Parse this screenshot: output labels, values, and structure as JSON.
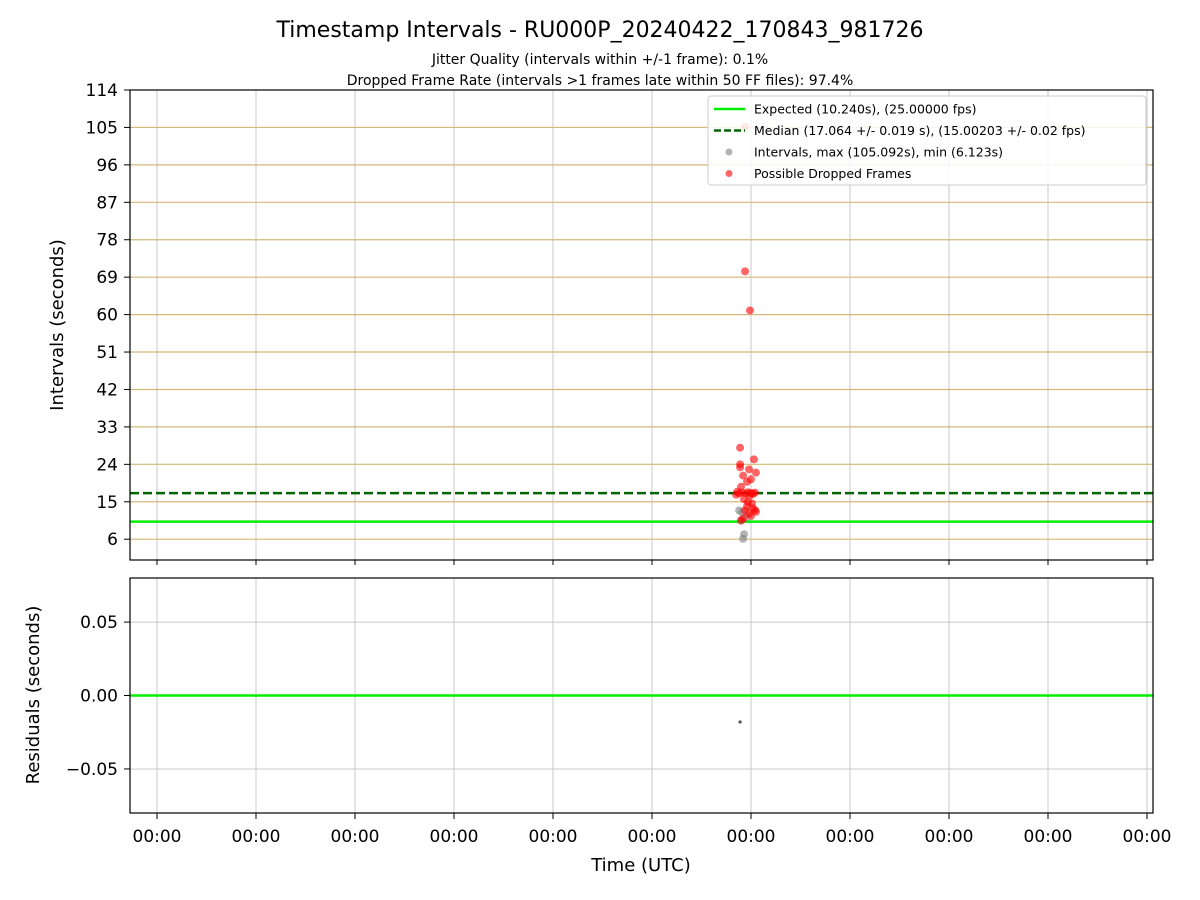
{
  "title": "Timestamp Intervals - RU000P_20240422_170843_981726",
  "subtitle_1": "Jitter Quality (intervals within +/-1 frame): 0.1%",
  "subtitle_2": "Dropped Frame Rate (intervals >1 frames late within 50 FF files): 97.4%",
  "colors": {
    "expected": "#00ee00",
    "median": "#006400",
    "normal_points": "#808080",
    "dropped_points": "#ff0000",
    "hgrid": "#d4b877",
    "vgrid": "#c8c8c8"
  },
  "chart_data": [
    {
      "type": "scatter",
      "ylabel": "Intervals (seconds)",
      "ylim": [
        1,
        114
      ],
      "yticks": [
        "6",
        "15",
        "24",
        "33",
        "42",
        "51",
        "60",
        "69",
        "78",
        "87",
        "96",
        "105",
        "114"
      ],
      "xtick_labels": [
        "00:00",
        "00:00",
        "00:00",
        "00:00",
        "00:00",
        "00:00",
        "00:00",
        "00:00",
        "00:00",
        "00:00",
        "00:00"
      ],
      "grid": true,
      "legend_position": "top-right",
      "reference_lines": [
        {
          "name": "Expected (10.240s), (25.00000 fps)",
          "value": 10.24,
          "style": "solid"
        },
        {
          "name": "Median (17.064 +/- 0.019 s), (15.00203 +/- 0.02 fps)",
          "value": 17.064,
          "style": "dashed"
        }
      ],
      "series": [
        {
          "name": "Intervals, max (105.092s), min (6.123s)",
          "points": [
            [
              5.88,
              12.9
            ],
            [
              5.91,
              12.5
            ],
            [
              5.92,
              6.1
            ],
            [
              5.93,
              7.2
            ],
            [
              5.95,
              11.2
            ],
            [
              5.9,
              10.5
            ]
          ]
        },
        {
          "name": "Possible Dropped Frames",
          "points": [
            [
              5.94,
              105.1
            ],
            [
              5.94,
              70.4
            ],
            [
              5.99,
              61.0
            ],
            [
              5.89,
              28.0
            ],
            [
              6.03,
              25.2
            ],
            [
              5.89,
              24.0
            ],
            [
              5.89,
              23.3
            ],
            [
              5.98,
              22.8
            ],
            [
              6.05,
              22.0
            ],
            [
              5.92,
              21.3
            ],
            [
              6.0,
              20.4
            ],
            [
              5.96,
              19.8
            ],
            [
              5.9,
              18.6
            ],
            [
              5.86,
              17.4
            ],
            [
              5.88,
              17.0
            ],
            [
              5.91,
              17.2
            ],
            [
              5.95,
              17.0
            ],
            [
              5.97,
              17.3
            ],
            [
              6.0,
              17.1
            ],
            [
              6.02,
              16.9
            ],
            [
              6.04,
              17.2
            ],
            [
              5.85,
              16.7
            ],
            [
              5.99,
              16.5
            ],
            [
              5.93,
              15.6
            ],
            [
              5.97,
              14.9
            ],
            [
              6.01,
              14.6
            ],
            [
              5.96,
              13.9
            ],
            [
              6.02,
              13.4
            ],
            [
              6.04,
              13.0
            ],
            [
              6.05,
              12.6
            ],
            [
              5.94,
              12.9
            ],
            [
              5.98,
              12.2
            ],
            [
              6.0,
              11.6
            ],
            [
              5.92,
              11.0
            ],
            [
              5.9,
              10.5
            ]
          ]
        }
      ]
    },
    {
      "type": "scatter",
      "xlabel": "Time (UTC)",
      "ylabel": "Residuals (seconds)",
      "ylim": [
        -0.08,
        0.08
      ],
      "yticks": [
        "−0.05",
        "0.00",
        "0.05"
      ],
      "ytick_values": [
        -0.05,
        0.0,
        0.05
      ],
      "xtick_labels": [
        "00:00",
        "00:00",
        "00:00",
        "00:00",
        "00:00",
        "00:00",
        "00:00",
        "00:00",
        "00:00",
        "00:00",
        "00:00"
      ],
      "grid": true,
      "reference_lines": [
        {
          "value": 0.0,
          "style": "solid"
        }
      ],
      "series": [
        {
          "points": [
            [
              5.89,
              -0.018
            ]
          ]
        }
      ]
    }
  ]
}
